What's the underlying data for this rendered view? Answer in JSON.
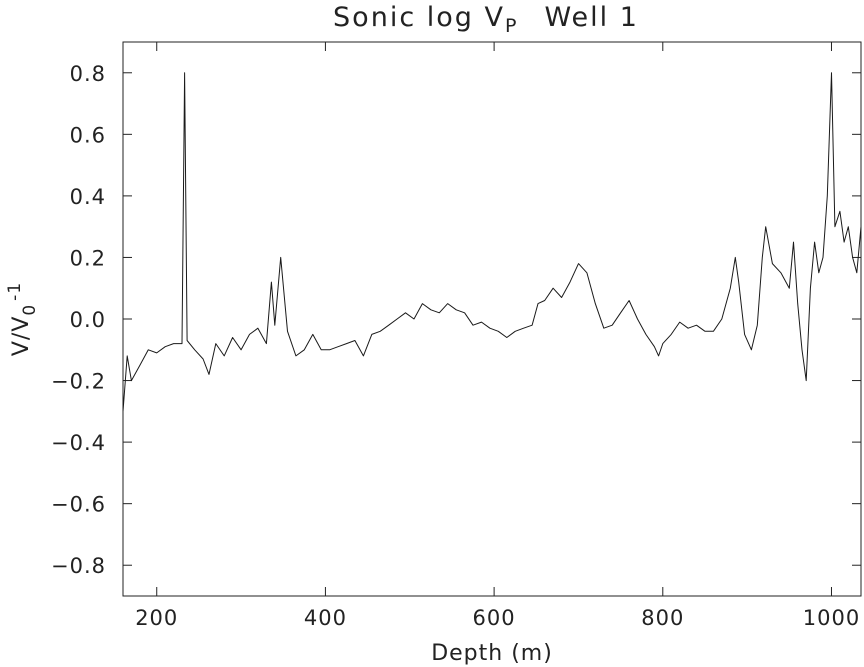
{
  "chart_data": {
    "type": "line",
    "title": "Sonic log V",
    "title_subscript": "P",
    "title_suffix": "Well 1",
    "xlabel": "Depth (m)",
    "ylabel": "V/V",
    "ylabel_subscript": "0",
    "ylabel_suffix": "-1",
    "xlim": [
      160,
      1035
    ],
    "ylim": [
      -0.9,
      0.9
    ],
    "xticks": [
      200,
      400,
      600,
      800,
      1000
    ],
    "xtick_labels": [
      "200",
      "400",
      "600",
      "800",
      "1000"
    ],
    "yticks": [
      0.8,
      0.6,
      0.4,
      0.2,
      0.0,
      -0.2,
      -0.4,
      -0.6,
      -0.8
    ],
    "ytick_labels": [
      "0.8",
      "0.6",
      "0.4",
      "0.2",
      "0.0",
      "−0.2",
      "−0.4",
      "−0.6",
      "−0.8"
    ],
    "grid": false,
    "line_color": "#1a1a1a",
    "series": [
      {
        "x": [
          160,
          165,
          170,
          180,
          190,
          200,
          210,
          220,
          230,
          233,
          236,
          245,
          255,
          262,
          270,
          280,
          290,
          300,
          310,
          320,
          330,
          336,
          340,
          347,
          355,
          365,
          375,
          385,
          395,
          405,
          415,
          425,
          435,
          445,
          455,
          465,
          475,
          485,
          495,
          505,
          515,
          525,
          535,
          545,
          555,
          565,
          575,
          585,
          595,
          605,
          615,
          625,
          635,
          645,
          652,
          660,
          670,
          680,
          690,
          700,
          710,
          720,
          730,
          740,
          750,
          760,
          770,
          780,
          790,
          795,
          800,
          810,
          820,
          830,
          840,
          850,
          860,
          870,
          880,
          886,
          890,
          897,
          905,
          912,
          918,
          922,
          930,
          940,
          950,
          955,
          960,
          965,
          970,
          975,
          980,
          985,
          990,
          995,
          1000,
          1002,
          1004,
          1010,
          1015,
          1020,
          1025,
          1030,
          1035
        ],
        "y": [
          -0.3,
          -0.12,
          -0.2,
          -0.15,
          -0.1,
          -0.11,
          -0.09,
          -0.08,
          -0.08,
          0.8,
          -0.07,
          -0.1,
          -0.13,
          -0.18,
          -0.08,
          -0.12,
          -0.06,
          -0.1,
          -0.05,
          -0.03,
          -0.08,
          0.12,
          -0.02,
          0.2,
          -0.04,
          -0.12,
          -0.1,
          -0.05,
          -0.1,
          -0.1,
          -0.09,
          -0.08,
          -0.07,
          -0.12,
          -0.05,
          -0.04,
          -0.02,
          0.0,
          0.02,
          0.0,
          0.05,
          0.03,
          0.02,
          0.05,
          0.03,
          0.02,
          -0.02,
          -0.01,
          -0.03,
          -0.04,
          -0.06,
          -0.04,
          -0.03,
          -0.02,
          0.05,
          0.06,
          0.1,
          0.07,
          0.12,
          0.18,
          0.15,
          0.05,
          -0.03,
          -0.02,
          0.02,
          0.06,
          0.0,
          -0.05,
          -0.09,
          -0.12,
          -0.08,
          -0.05,
          -0.01,
          -0.03,
          -0.02,
          -0.04,
          -0.04,
          0.0,
          0.1,
          0.2,
          0.12,
          -0.05,
          -0.1,
          -0.02,
          0.2,
          0.3,
          0.18,
          0.15,
          0.1,
          0.25,
          0.05,
          -0.1,
          -0.2,
          0.1,
          0.25,
          0.15,
          0.2,
          0.4,
          0.8,
          0.55,
          0.3,
          0.35,
          0.25,
          0.3,
          0.2,
          0.15,
          0.3
        ]
      }
    ]
  }
}
